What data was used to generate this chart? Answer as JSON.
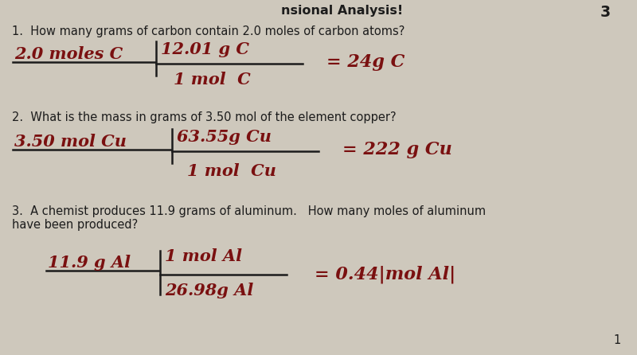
{
  "bg_color": "#cec8bc",
  "title_text": "nsional Analysis!",
  "page_num_top": "3",
  "q1_text": "1.  How many grams of carbon contain 2.0 moles of carbon atoms?",
  "q1_left": "2.0 moles C",
  "q1_num": "12.01 g C",
  "q1_den": "1 mol  C",
  "q1_ans": "= 24g C",
  "q2_text": "2.  What is the mass in grams of 3.50 mol of the element copper?",
  "q2_left": "3.50 mol Cu",
  "q2_num": "63.55g Cu",
  "q2_den": "1 mol  Cu",
  "q2_ans": "= 222 g Cu",
  "q3_text": "3.  A chemist produces 11.9 grams of aluminum.   How many moles of aluminum\nhave been produced?",
  "q3_left": "11.9 g Al",
  "q3_num": "1 mol Al",
  "q3_den": "26.98g Al",
  "q3_ans": "= 0.44|mol Al|",
  "handwriting_color": "#7a1010",
  "printed_color": "#1c1c1c",
  "line_color": "#1c1c1c",
  "fs_print": 10.5,
  "fs_hw": 15,
  "fs_ans": 16,
  "page_num_bottom": "1"
}
